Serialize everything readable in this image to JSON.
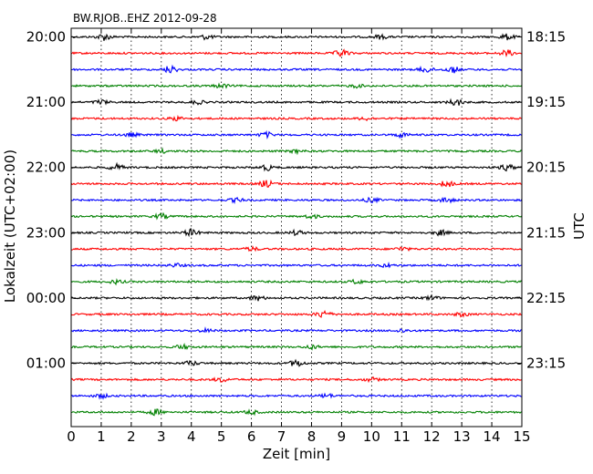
{
  "chart_data": {
    "type": "line",
    "title": "BW.RJOB..EHZ 2012-09-28",
    "xlabel": "Zeit  [min]",
    "ylabel_left": "Lokalzeit (UTC+02:00)",
    "ylabel_right": "UTC",
    "xlim": [
      0,
      15
    ],
    "xticks": [
      "0",
      "1",
      "2",
      "3",
      "4",
      "5",
      "6",
      "7",
      "8",
      "9",
      "10",
      "11",
      "12",
      "13",
      "14",
      "15"
    ],
    "left_ticks": [
      "20:00",
      "21:00",
      "22:00",
      "23:00",
      "00:00",
      "01:00"
    ],
    "right_ticks": [
      "18:15",
      "19:15",
      "20:15",
      "21:15",
      "22:15",
      "23:15"
    ],
    "rows": 24,
    "minutes_per_row": 15,
    "trace_colors": [
      "#000000",
      "#ff0000",
      "#0000ff",
      "#008000"
    ],
    "grid": "vertical dotted at each minute",
    "traces": [
      {
        "row": 0,
        "color": "#000000",
        "bursts": [
          {
            "x": 1.1,
            "a": 1.1
          },
          {
            "x": 4.5,
            "a": 0.7
          },
          {
            "x": 10.3,
            "a": 0.6
          },
          {
            "x": 14.5,
            "a": 0.9
          }
        ]
      },
      {
        "row": 1,
        "color": "#ff0000",
        "bursts": [
          {
            "x": 9.0,
            "a": 1.2
          },
          {
            "x": 14.5,
            "a": 1.0
          }
        ]
      },
      {
        "row": 2,
        "color": "#0000ff",
        "bursts": [
          {
            "x": 3.3,
            "a": 1.2
          },
          {
            "x": 11.8,
            "a": 0.9
          },
          {
            "x": 12.7,
            "a": 1.0
          }
        ]
      },
      {
        "row": 3,
        "color": "#008000",
        "bursts": [
          {
            "x": 5.0,
            "a": 0.6
          },
          {
            "x": 9.5,
            "a": 0.5
          }
        ]
      },
      {
        "row": 4,
        "color": "#000000",
        "bursts": [
          {
            "x": 1.0,
            "a": 0.7
          },
          {
            "x": 4.2,
            "a": 0.6
          },
          {
            "x": 12.8,
            "a": 1.1
          }
        ]
      },
      {
        "row": 5,
        "color": "#ff0000",
        "bursts": [
          {
            "x": 3.5,
            "a": 0.6
          },
          {
            "x": 9.8,
            "a": 0.5
          }
        ]
      },
      {
        "row": 6,
        "color": "#0000ff",
        "bursts": [
          {
            "x": 2.0,
            "a": 0.6
          },
          {
            "x": 6.5,
            "a": 0.8
          },
          {
            "x": 11.0,
            "a": 0.7
          }
        ]
      },
      {
        "row": 7,
        "color": "#008000",
        "bursts": [
          {
            "x": 3.0,
            "a": 0.5
          },
          {
            "x": 7.5,
            "a": 0.5
          }
        ]
      },
      {
        "row": 8,
        "color": "#000000",
        "bursts": [
          {
            "x": 1.5,
            "a": 1.0
          },
          {
            "x": 6.5,
            "a": 0.9
          },
          {
            "x": 14.5,
            "a": 1.0
          }
        ]
      },
      {
        "row": 9,
        "color": "#ff0000",
        "bursts": [
          {
            "x": 6.5,
            "a": 1.1
          },
          {
            "x": 12.5,
            "a": 1.0
          }
        ]
      },
      {
        "row": 10,
        "color": "#0000ff",
        "bursts": [
          {
            "x": 5.5,
            "a": 0.6
          },
          {
            "x": 10.0,
            "a": 0.7
          },
          {
            "x": 12.5,
            "a": 0.8
          }
        ]
      },
      {
        "row": 11,
        "color": "#008000",
        "bursts": [
          {
            "x": 3.0,
            "a": 0.8
          },
          {
            "x": 8.0,
            "a": 0.6
          }
        ]
      },
      {
        "row": 12,
        "color": "#000000",
        "bursts": [
          {
            "x": 4.0,
            "a": 1.1
          },
          {
            "x": 7.5,
            "a": 0.7
          },
          {
            "x": 12.3,
            "a": 0.8
          }
        ]
      },
      {
        "row": 13,
        "color": "#ff0000",
        "bursts": [
          {
            "x": 6.0,
            "a": 0.6
          },
          {
            "x": 11.0,
            "a": 0.6
          }
        ]
      },
      {
        "row": 14,
        "color": "#0000ff",
        "bursts": [
          {
            "x": 3.5,
            "a": 0.5
          },
          {
            "x": 10.5,
            "a": 0.5
          }
        ]
      },
      {
        "row": 15,
        "color": "#008000",
        "bursts": [
          {
            "x": 1.5,
            "a": 0.6
          },
          {
            "x": 9.5,
            "a": 0.6
          }
        ]
      },
      {
        "row": 16,
        "color": "#000000",
        "bursts": [
          {
            "x": 6.2,
            "a": 0.8
          },
          {
            "x": 12.0,
            "a": 0.7
          }
        ]
      },
      {
        "row": 17,
        "color": "#ff0000",
        "bursts": [
          {
            "x": 8.4,
            "a": 1.2
          },
          {
            "x": 13.0,
            "a": 0.6
          }
        ]
      },
      {
        "row": 18,
        "color": "#0000ff",
        "bursts": [
          {
            "x": 4.5,
            "a": 0.5
          },
          {
            "x": 11.0,
            "a": 0.5
          }
        ]
      },
      {
        "row": 19,
        "color": "#008000",
        "bursts": [
          {
            "x": 3.7,
            "a": 0.7
          },
          {
            "x": 8.0,
            "a": 0.6
          }
        ]
      },
      {
        "row": 20,
        "color": "#000000",
        "bursts": [
          {
            "x": 4.0,
            "a": 0.7
          },
          {
            "x": 7.5,
            "a": 1.1
          }
        ]
      },
      {
        "row": 21,
        "color": "#ff0000",
        "bursts": [
          {
            "x": 5.0,
            "a": 0.7
          },
          {
            "x": 10.0,
            "a": 0.6
          }
        ]
      },
      {
        "row": 22,
        "color": "#0000ff",
        "bursts": [
          {
            "x": 1.0,
            "a": 0.6
          },
          {
            "x": 8.5,
            "a": 0.6
          }
        ]
      },
      {
        "row": 23,
        "color": "#008000",
        "bursts": [
          {
            "x": 2.8,
            "a": 0.9
          },
          {
            "x": 6.0,
            "a": 0.6
          }
        ]
      }
    ]
  }
}
